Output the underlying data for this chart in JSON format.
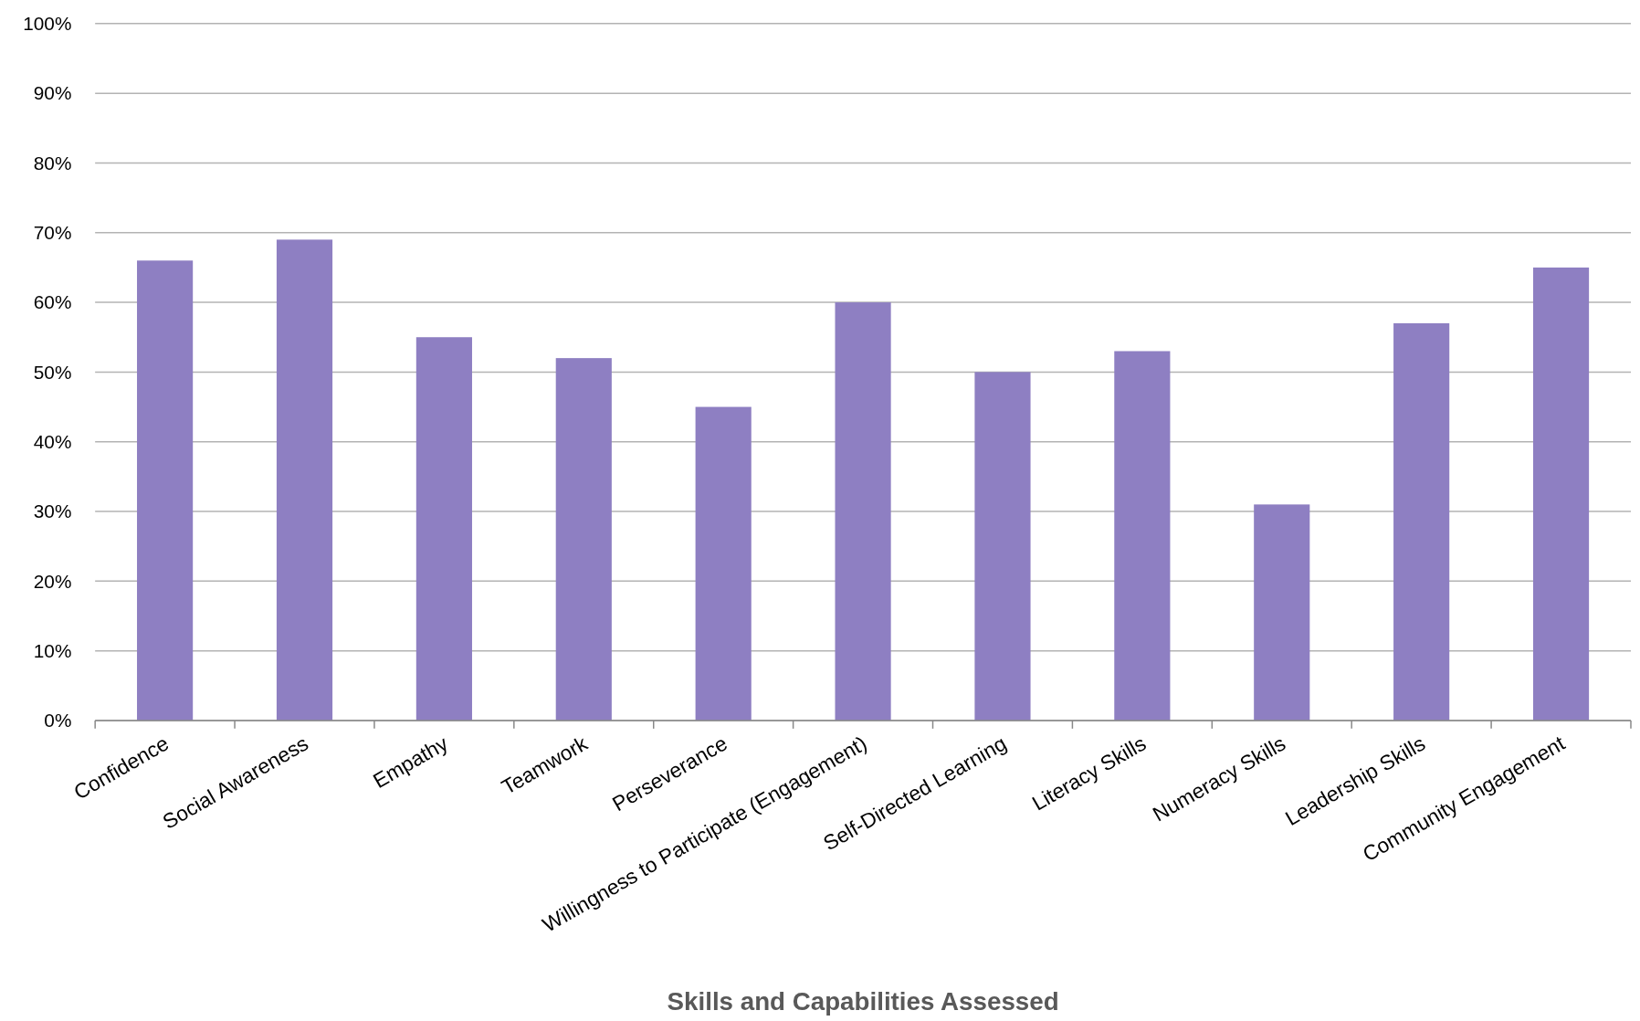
{
  "chart_data": {
    "type": "bar",
    "xlabel": "Skills and Capabilities Assessed",
    "categories": [
      "Confidence",
      "Social Awareness",
      "Empathy",
      "Teamwork",
      "Perseverance",
      "Willingness to Participate (Engagement)",
      "Self-Directed Learning",
      "Literacy Skills",
      "Numeracy Skills",
      "Leadership Skills",
      "Community Engagement"
    ],
    "values": [
      66,
      69,
      55,
      52,
      45,
      60,
      50,
      53,
      31,
      57,
      65
    ],
    "color": "#8e7fc2",
    "ylim": [
      0,
      100
    ],
    "yticks": [
      {
        "value": 0,
        "label": "0%"
      },
      {
        "value": 10,
        "label": "10%"
      },
      {
        "value": 20,
        "label": "20%"
      },
      {
        "value": 30,
        "label": "30%"
      },
      {
        "value": 40,
        "label": "40%"
      },
      {
        "value": 50,
        "label": "50%"
      },
      {
        "value": 60,
        "label": "60%"
      },
      {
        "value": 70,
        "label": "70%"
      },
      {
        "value": 80,
        "label": "80%"
      },
      {
        "value": 90,
        "label": "90%"
      },
      {
        "value": 100,
        "label": "100%"
      }
    ],
    "grid": "y"
  }
}
